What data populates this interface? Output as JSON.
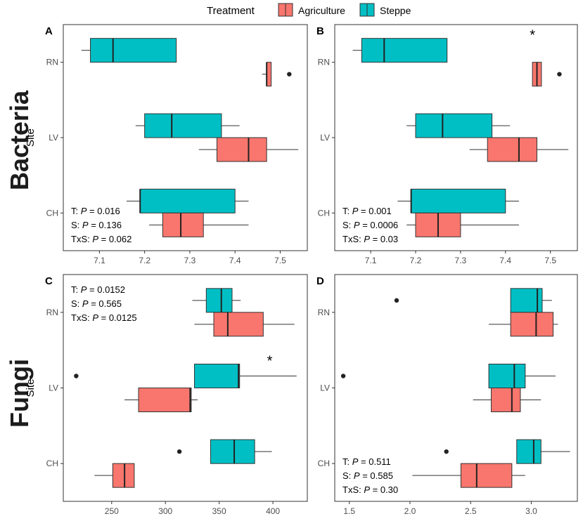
{
  "legend": {
    "title": "Treatment",
    "items": [
      {
        "label": "Agriculture",
        "color": "#F8766D"
      },
      {
        "label": "Steppe",
        "color": "#00BFC4"
      }
    ]
  },
  "row_titles": {
    "top": "Bacteria",
    "bottom": "Fungi"
  },
  "chart_data": [
    {
      "panel": "A",
      "type": "boxplot",
      "ylabel": "Site",
      "categories": [
        "RN",
        "LV",
        "CH"
      ],
      "xlim": [
        7.02,
        7.56
      ],
      "xticks": [
        7.1,
        7.2,
        7.3,
        7.4,
        7.5
      ],
      "xticklabels": [
        "7.1",
        "7.2",
        "7.3",
        "7.4",
        "7.5"
      ],
      "series": [
        {
          "name": "Steppe",
          "boxes": [
            {
              "site": "RN",
              "min": 7.06,
              "q1": 7.08,
              "median": 7.13,
              "q3": 7.27,
              "max": 7.27,
              "outliers": []
            },
            {
              "site": "LV",
              "min": 7.18,
              "q1": 7.2,
              "median": 7.26,
              "q3": 7.37,
              "max": 7.41,
              "outliers": []
            },
            {
              "site": "CH",
              "min": 7.16,
              "q1": 7.19,
              "median": 7.19,
              "q3": 7.4,
              "max": 7.43,
              "outliers": []
            }
          ]
        },
        {
          "name": "Agriculture",
          "boxes": [
            {
              "site": "RN",
              "min": 7.46,
              "q1": 7.47,
              "median": 7.47,
              "q3": 7.48,
              "max": 7.48,
              "outliers": [
                7.52
              ]
            },
            {
              "site": "LV",
              "min": 7.32,
              "q1": 7.36,
              "median": 7.43,
              "q3": 7.47,
              "max": 7.54,
              "outliers": []
            },
            {
              "site": "CH",
              "min": 7.21,
              "q1": 7.24,
              "median": 7.28,
              "q3": 7.33,
              "max": 7.43,
              "outliers": []
            }
          ]
        }
      ],
      "stats": [
        {
          "prefix": "T: ",
          "label": "P",
          "value": " = 0.016"
        },
        {
          "prefix": "S: ",
          "label": "P",
          "value": " = 0.136"
        },
        {
          "prefix": "TxS: ",
          "label": "P",
          "value": " = 0.062"
        }
      ],
      "stats_corner": "bottom-left",
      "annotations": []
    },
    {
      "panel": "B",
      "type": "boxplot",
      "ylabel": "",
      "categories": [
        "RN",
        "LV",
        "CH"
      ],
      "xlim": [
        7.02,
        7.56
      ],
      "xticks": [
        7.1,
        7.2,
        7.3,
        7.4,
        7.5
      ],
      "xticklabels": [
        "7.1",
        "7.2",
        "7.3",
        "7.4",
        "7.5"
      ],
      "series": [
        {
          "name": "Steppe",
          "boxes": [
            {
              "site": "RN",
              "min": 7.06,
              "q1": 7.08,
              "median": 7.13,
              "q3": 7.27,
              "max": 7.27,
              "outliers": []
            },
            {
              "site": "LV",
              "min": 7.18,
              "q1": 7.2,
              "median": 7.26,
              "q3": 7.37,
              "max": 7.41,
              "outliers": []
            },
            {
              "site": "CH",
              "min": 7.16,
              "q1": 7.19,
              "median": 7.19,
              "q3": 7.4,
              "max": 7.43,
              "outliers": []
            }
          ]
        },
        {
          "name": "Agriculture",
          "boxes": [
            {
              "site": "RN",
              "min": 7.46,
              "q1": 7.46,
              "median": 7.47,
              "q3": 7.48,
              "max": 7.48,
              "outliers": [
                7.52
              ]
            },
            {
              "site": "LV",
              "min": 7.32,
              "q1": 7.36,
              "median": 7.43,
              "q3": 7.47,
              "max": 7.54,
              "outliers": []
            },
            {
              "site": "CH",
              "min": 7.18,
              "q1": 7.2,
              "median": 7.25,
              "q3": 7.3,
              "max": 7.43,
              "outliers": []
            }
          ]
        }
      ],
      "stats": [
        {
          "prefix": "T: ",
          "label": "P",
          "value": " = 0.001"
        },
        {
          "prefix": "S: ",
          "label": "P",
          "value": " = 0.0006"
        },
        {
          "prefix": "TxS: ",
          "label": "P",
          "value": " = 0.03"
        }
      ],
      "stats_corner": "bottom-left",
      "annotations": [
        {
          "text": "*",
          "x": 7.46,
          "site": "RN"
        }
      ]
    },
    {
      "panel": "C",
      "type": "boxplot",
      "ylabel": "Site",
      "categories": [
        "RN",
        "LV",
        "CH"
      ],
      "xlim": [
        205,
        432
      ],
      "xticks": [
        250,
        300,
        350,
        400
      ],
      "xticklabels": [
        "250",
        "300",
        "350",
        "400"
      ],
      "series": [
        {
          "name": "Steppe",
          "boxes": [
            {
              "site": "RN",
              "min": 325,
              "q1": 338,
              "median": 352,
              "q3": 362,
              "max": 370,
              "outliers": []
            },
            {
              "site": "LV",
              "min": 327,
              "q1": 327,
              "median": 368,
              "q3": 369,
              "max": 422,
              "outliers": [
                217
              ]
            },
            {
              "site": "CH",
              "min": 342,
              "q1": 342,
              "median": 364,
              "q3": 383,
              "max": 399,
              "outliers": [
                313
              ]
            }
          ]
        },
        {
          "name": "Agriculture",
          "boxes": [
            {
              "site": "RN",
              "min": 327,
              "q1": 345,
              "median": 358,
              "q3": 391,
              "max": 420,
              "outliers": []
            },
            {
              "site": "LV",
              "min": 262,
              "q1": 275,
              "median": 323,
              "q3": 324,
              "max": 330,
              "outliers": []
            },
            {
              "site": "CH",
              "min": 234,
              "q1": 251,
              "median": 262,
              "q3": 271,
              "max": 271,
              "outliers": []
            }
          ]
        }
      ],
      "stats": [
        {
          "prefix": "T: ",
          "label": "P",
          "value": " = 0.0152"
        },
        {
          "prefix": "S: ",
          "label": "P",
          "value": " = 0.565"
        },
        {
          "prefix": "TxS: ",
          "label": "P",
          "value": " = 0.0125"
        }
      ],
      "stats_corner": "top-left",
      "annotations": [
        {
          "text": "*",
          "x": 397,
          "site": "LV"
        }
      ]
    },
    {
      "panel": "D",
      "type": "boxplot",
      "ylabel": "",
      "categories": [
        "RN",
        "LV",
        "CH"
      ],
      "xlim": [
        1.38,
        3.38
      ],
      "xticks": [
        1.5,
        2.0,
        2.5,
        3.0
      ],
      "xticklabels": [
        "1.5",
        "2.0",
        "2.5",
        "3.0"
      ],
      "series": [
        {
          "name": "Steppe",
          "boxes": [
            {
              "site": "RN",
              "min": 2.83,
              "q1": 2.83,
              "median": 3.05,
              "q3": 3.09,
              "max": 3.17,
              "outliers": [
                1.89
              ]
            },
            {
              "site": "LV",
              "min": 2.65,
              "q1": 2.65,
              "median": 2.86,
              "q3": 2.95,
              "max": 3.2,
              "outliers": [
                1.45
              ]
            },
            {
              "site": "CH",
              "min": 2.88,
              "q1": 2.88,
              "median": 3.02,
              "q3": 3.08,
              "max": 3.32,
              "outliers": [
                2.3
              ]
            }
          ]
        },
        {
          "name": "Agriculture",
          "boxes": [
            {
              "site": "RN",
              "min": 2.65,
              "q1": 2.83,
              "median": 3.04,
              "q3": 3.18,
              "max": 3.22,
              "outliers": []
            },
            {
              "site": "LV",
              "min": 2.52,
              "q1": 2.67,
              "median": 2.84,
              "q3": 2.91,
              "max": 3.08,
              "outliers": []
            },
            {
              "site": "CH",
              "min": 2.02,
              "q1": 2.42,
              "median": 2.55,
              "q3": 2.84,
              "max": 2.95,
              "outliers": []
            }
          ]
        }
      ],
      "stats": [
        {
          "prefix": "T: ",
          "label": "P",
          "value": " = 0.511"
        },
        {
          "prefix": "S: ",
          "label": "P",
          "value": " = 0.585"
        },
        {
          "prefix": "TxS: ",
          "label": "P",
          "value": " = 0.30"
        }
      ],
      "stats_corner": "bottom-left",
      "annotations": []
    }
  ]
}
